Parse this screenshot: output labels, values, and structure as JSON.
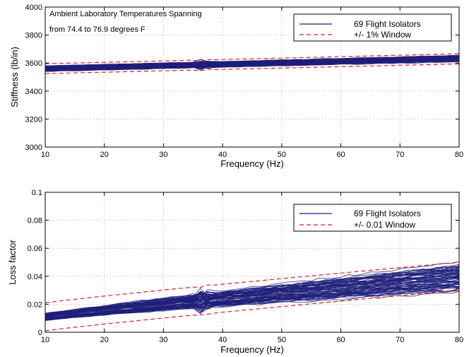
{
  "chart_data": [
    {
      "type": "line",
      "xlabel": "Frequency (Hz)",
      "ylabel": "Stiffness (lb/in)",
      "xlim": [
        10,
        80
      ],
      "ylim": [
        3000,
        4000
      ],
      "xticks": [
        10,
        20,
        30,
        40,
        50,
        60,
        70,
        80
      ],
      "yticks": [
        3000,
        3200,
        3400,
        3600,
        3800,
        4000
      ],
      "grid": true,
      "legend_position": "top-right",
      "annotation": [
        "Ambient Laboratory Temperatures Spanning",
        "from 74.4 to 76.9 degrees F"
      ],
      "series": [
        {
          "name": "69 Flight Isolators",
          "color": "#1f1f7a",
          "style": "solid",
          "count": 69,
          "x": [
            10,
            80
          ],
          "center": [
            3560,
            3630
          ],
          "spread": [
            20,
            22
          ]
        },
        {
          "name": "+/- 1% Window",
          "color": "#e0201b",
          "style": "dashed",
          "x": [
            10,
            80
          ],
          "upper": [
            3595,
            3666
          ],
          "lower": [
            3525,
            3594
          ]
        }
      ]
    },
    {
      "type": "line",
      "xlabel": "Frequency (Hz)",
      "ylabel": "Loss factor",
      "xlim": [
        10,
        80
      ],
      "ylim": [
        0,
        0.1
      ],
      "xticks": [
        10,
        20,
        30,
        40,
        50,
        60,
        70,
        80
      ],
      "yticks": [
        0,
        0.02,
        0.04,
        0.06,
        0.08,
        0.1
      ],
      "grid": true,
      "legend_position": "top-right",
      "series": [
        {
          "name": "69 Flight Isolators",
          "color": "#1f1f7a",
          "style": "solid",
          "count": 69,
          "x": [
            10,
            80
          ],
          "center": [
            0.011,
            0.04
          ],
          "spread": [
            0.0025,
            0.009
          ]
        },
        {
          "name": "+/- 0.01 Window",
          "color": "#e0201b",
          "style": "dashed",
          "x": [
            10,
            80
          ],
          "upper": [
            0.021,
            0.05
          ],
          "lower": [
            0.001,
            0.03
          ]
        }
      ]
    }
  ]
}
